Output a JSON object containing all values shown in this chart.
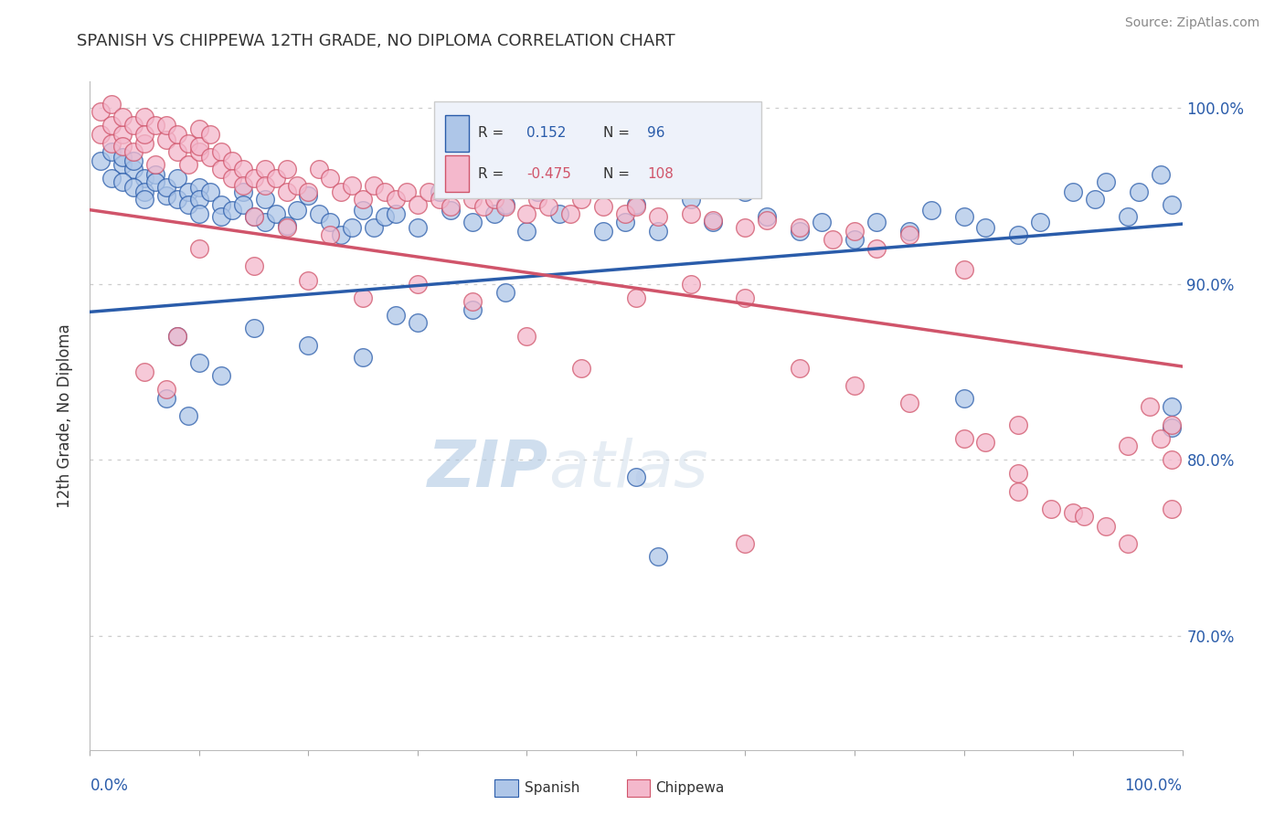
{
  "title": "SPANISH VS CHIPPEWA 12TH GRADE, NO DIPLOMA CORRELATION CHART",
  "source": "Source: ZipAtlas.com",
  "ylabel_label": "12th Grade, No Diploma",
  "x_range": [
    0.0,
    1.0
  ],
  "y_range": [
    0.635,
    1.015
  ],
  "y_ticks": [
    0.7,
    0.8,
    0.9,
    1.0
  ],
  "y_tick_labels": [
    "70.0%",
    "80.0%",
    "90.0%",
    "100.0%"
  ],
  "spanish_R": 0.152,
  "spanish_N": 96,
  "chippewa_R": -0.475,
  "chippewa_N": 108,
  "spanish_color": "#aec6e8",
  "chippewa_color": "#f4b8cc",
  "spanish_line_color": "#2a5caa",
  "chippewa_line_color": "#d0546a",
  "background_color": "#ffffff",
  "grid_color": "#cccccc",
  "watermark_color": "#dce8f0",
  "spanish_trend_y0": 0.884,
  "spanish_trend_y1": 0.934,
  "chippewa_trend_y0": 0.942,
  "chippewa_trend_y1": 0.853,
  "spanish_points": [
    [
      0.01,
      0.97
    ],
    [
      0.02,
      0.975
    ],
    [
      0.03,
      0.968
    ],
    [
      0.02,
      0.96
    ],
    [
      0.03,
      0.972
    ],
    [
      0.04,
      0.965
    ],
    [
      0.03,
      0.958
    ],
    [
      0.04,
      0.97
    ],
    [
      0.05,
      0.96
    ],
    [
      0.04,
      0.955
    ],
    [
      0.05,
      0.952
    ],
    [
      0.06,
      0.962
    ],
    [
      0.05,
      0.948
    ],
    [
      0.06,
      0.958
    ],
    [
      0.07,
      0.95
    ],
    [
      0.07,
      0.955
    ],
    [
      0.08,
      0.948
    ],
    [
      0.08,
      0.96
    ],
    [
      0.09,
      0.952
    ],
    [
      0.09,
      0.945
    ],
    [
      0.1,
      0.955
    ],
    [
      0.1,
      0.948
    ],
    [
      0.1,
      0.94
    ],
    [
      0.11,
      0.952
    ],
    [
      0.12,
      0.945
    ],
    [
      0.12,
      0.938
    ],
    [
      0.13,
      0.942
    ],
    [
      0.14,
      0.952
    ],
    [
      0.14,
      0.945
    ],
    [
      0.15,
      0.938
    ],
    [
      0.16,
      0.935
    ],
    [
      0.16,
      0.948
    ],
    [
      0.17,
      0.94
    ],
    [
      0.18,
      0.933
    ],
    [
      0.19,
      0.942
    ],
    [
      0.2,
      0.95
    ],
    [
      0.21,
      0.94
    ],
    [
      0.22,
      0.935
    ],
    [
      0.23,
      0.928
    ],
    [
      0.24,
      0.932
    ],
    [
      0.25,
      0.942
    ],
    [
      0.26,
      0.932
    ],
    [
      0.27,
      0.938
    ],
    [
      0.28,
      0.94
    ],
    [
      0.3,
      0.932
    ],
    [
      0.32,
      0.952
    ],
    [
      0.33,
      0.942
    ],
    [
      0.35,
      0.935
    ],
    [
      0.37,
      0.94
    ],
    [
      0.38,
      0.945
    ],
    [
      0.4,
      0.93
    ],
    [
      0.41,
      0.952
    ],
    [
      0.43,
      0.94
    ],
    [
      0.45,
      0.958
    ],
    [
      0.47,
      0.93
    ],
    [
      0.49,
      0.935
    ],
    [
      0.5,
      0.945
    ],
    [
      0.52,
      0.93
    ],
    [
      0.55,
      0.948
    ],
    [
      0.57,
      0.935
    ],
    [
      0.6,
      0.952
    ],
    [
      0.62,
      0.938
    ],
    [
      0.65,
      0.93
    ],
    [
      0.67,
      0.935
    ],
    [
      0.7,
      0.925
    ],
    [
      0.72,
      0.935
    ],
    [
      0.75,
      0.93
    ],
    [
      0.77,
      0.942
    ],
    [
      0.8,
      0.938
    ],
    [
      0.82,
      0.932
    ],
    [
      0.85,
      0.928
    ],
    [
      0.87,
      0.935
    ],
    [
      0.9,
      0.952
    ],
    [
      0.92,
      0.948
    ],
    [
      0.93,
      0.958
    ],
    [
      0.95,
      0.938
    ],
    [
      0.96,
      0.952
    ],
    [
      0.98,
      0.962
    ],
    [
      0.99,
      0.945
    ],
    [
      0.08,
      0.87
    ],
    [
      0.1,
      0.855
    ],
    [
      0.12,
      0.848
    ],
    [
      0.15,
      0.875
    ],
    [
      0.2,
      0.865
    ],
    [
      0.25,
      0.858
    ],
    [
      0.3,
      0.878
    ],
    [
      0.07,
      0.835
    ],
    [
      0.09,
      0.825
    ],
    [
      0.5,
      0.79
    ],
    [
      0.52,
      0.745
    ],
    [
      0.8,
      0.835
    ],
    [
      0.99,
      0.83
    ],
    [
      0.99,
      0.818
    ],
    [
      0.38,
      0.895
    ],
    [
      0.35,
      0.885
    ],
    [
      0.28,
      0.882
    ]
  ],
  "chippewa_points": [
    [
      0.01,
      0.985
    ],
    [
      0.01,
      0.998
    ],
    [
      0.02,
      0.99
    ],
    [
      0.02,
      0.98
    ],
    [
      0.02,
      1.002
    ],
    [
      0.03,
      0.985
    ],
    [
      0.03,
      0.995
    ],
    [
      0.03,
      0.978
    ],
    [
      0.04,
      0.99
    ],
    [
      0.04,
      0.975
    ],
    [
      0.05,
      0.98
    ],
    [
      0.05,
      0.995
    ],
    [
      0.05,
      0.985
    ],
    [
      0.06,
      0.99
    ],
    [
      0.06,
      0.968
    ],
    [
      0.07,
      0.982
    ],
    [
      0.07,
      0.99
    ],
    [
      0.08,
      0.975
    ],
    [
      0.08,
      0.985
    ],
    [
      0.09,
      0.98
    ],
    [
      0.09,
      0.968
    ],
    [
      0.1,
      0.975
    ],
    [
      0.1,
      0.988
    ],
    [
      0.1,
      0.978
    ],
    [
      0.11,
      0.972
    ],
    [
      0.11,
      0.985
    ],
    [
      0.12,
      0.975
    ],
    [
      0.12,
      0.965
    ],
    [
      0.13,
      0.97
    ],
    [
      0.13,
      0.96
    ],
    [
      0.14,
      0.965
    ],
    [
      0.14,
      0.956
    ],
    [
      0.15,
      0.96
    ],
    [
      0.16,
      0.965
    ],
    [
      0.16,
      0.956
    ],
    [
      0.17,
      0.96
    ],
    [
      0.18,
      0.965
    ],
    [
      0.18,
      0.952
    ],
    [
      0.19,
      0.956
    ],
    [
      0.2,
      0.952
    ],
    [
      0.21,
      0.965
    ],
    [
      0.22,
      0.96
    ],
    [
      0.23,
      0.952
    ],
    [
      0.24,
      0.956
    ],
    [
      0.25,
      0.948
    ],
    [
      0.26,
      0.956
    ],
    [
      0.27,
      0.952
    ],
    [
      0.28,
      0.948
    ],
    [
      0.29,
      0.952
    ],
    [
      0.3,
      0.945
    ],
    [
      0.31,
      0.952
    ],
    [
      0.32,
      0.948
    ],
    [
      0.33,
      0.944
    ],
    [
      0.35,
      0.948
    ],
    [
      0.36,
      0.944
    ],
    [
      0.37,
      0.948
    ],
    [
      0.38,
      0.944
    ],
    [
      0.4,
      0.94
    ],
    [
      0.41,
      0.948
    ],
    [
      0.42,
      0.944
    ],
    [
      0.44,
      0.94
    ],
    [
      0.45,
      0.948
    ],
    [
      0.47,
      0.944
    ],
    [
      0.49,
      0.94
    ],
    [
      0.5,
      0.944
    ],
    [
      0.52,
      0.938
    ],
    [
      0.55,
      0.94
    ],
    [
      0.57,
      0.936
    ],
    [
      0.6,
      0.932
    ],
    [
      0.62,
      0.936
    ],
    [
      0.65,
      0.932
    ],
    [
      0.1,
      0.92
    ],
    [
      0.15,
      0.91
    ],
    [
      0.2,
      0.902
    ],
    [
      0.25,
      0.892
    ],
    [
      0.08,
      0.87
    ],
    [
      0.05,
      0.85
    ],
    [
      0.07,
      0.84
    ],
    [
      0.3,
      0.9
    ],
    [
      0.35,
      0.89
    ],
    [
      0.4,
      0.87
    ],
    [
      0.45,
      0.852
    ],
    [
      0.5,
      0.892
    ],
    [
      0.55,
      0.9
    ],
    [
      0.6,
      0.892
    ],
    [
      0.65,
      0.852
    ],
    [
      0.7,
      0.842
    ],
    [
      0.75,
      0.832
    ],
    [
      0.8,
      0.812
    ],
    [
      0.85,
      0.792
    ],
    [
      0.6,
      0.752
    ],
    [
      0.9,
      0.77
    ],
    [
      0.95,
      0.808
    ],
    [
      0.97,
      0.83
    ],
    [
      0.98,
      0.812
    ],
    [
      0.99,
      0.8
    ],
    [
      0.99,
      0.82
    ],
    [
      0.99,
      0.772
    ],
    [
      0.95,
      0.752
    ],
    [
      0.93,
      0.762
    ],
    [
      0.91,
      0.768
    ],
    [
      0.88,
      0.772
    ],
    [
      0.85,
      0.782
    ],
    [
      0.8,
      0.908
    ],
    [
      0.85,
      0.82
    ],
    [
      0.82,
      0.81
    ],
    [
      0.7,
      0.93
    ],
    [
      0.75,
      0.928
    ],
    [
      0.68,
      0.925
    ],
    [
      0.72,
      0.92
    ],
    [
      0.15,
      0.938
    ],
    [
      0.18,
      0.932
    ],
    [
      0.22,
      0.928
    ]
  ]
}
